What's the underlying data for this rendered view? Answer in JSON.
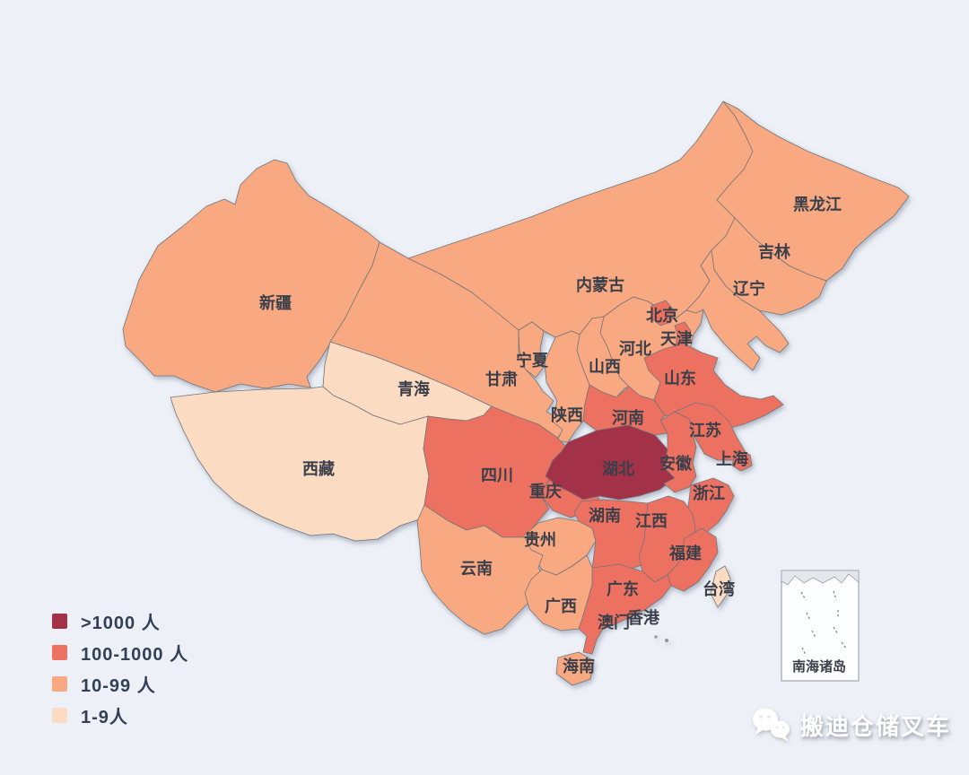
{
  "canvas": {
    "background": "#edf1f7"
  },
  "legend": {
    "items": [
      {
        "label": ">1000 人",
        "color": "#a33148",
        "level": 4
      },
      {
        "label": "100-1000 人",
        "color": "#ed7160",
        "level": 3
      },
      {
        "label": "10-99 人",
        "color": "#f8a982",
        "level": 2
      },
      {
        "label": "1-9人",
        "color": "#fbdcc3",
        "level": 1
      }
    ]
  },
  "map": {
    "border_color": "#73757a",
    "label_color": "#3a3f49",
    "island_dot_color": "#8f949c",
    "provinces": [
      {
        "id": "xinjiang",
        "name": "新疆",
        "level": 2
      },
      {
        "id": "xizang",
        "name": "西藏",
        "level": 1
      },
      {
        "id": "qinghai",
        "name": "青海",
        "level": 1
      },
      {
        "id": "gansu",
        "name": "甘肃",
        "level": 2
      },
      {
        "id": "neimenggu",
        "name": "内蒙古",
        "level": 2
      },
      {
        "id": "heilongjiang",
        "name": "黑龙江",
        "level": 2
      },
      {
        "id": "jilin",
        "name": "吉林",
        "level": 2
      },
      {
        "id": "liaoning",
        "name": "辽宁",
        "level": 2
      },
      {
        "id": "hebei",
        "name": "河北",
        "level": 2
      },
      {
        "id": "beijing",
        "name": "北京",
        "level": 3
      },
      {
        "id": "tianjin",
        "name": "天津",
        "level": 3
      },
      {
        "id": "shanxi",
        "name": "山西",
        "level": 2
      },
      {
        "id": "ningxia",
        "name": "宁夏",
        "level": 2
      },
      {
        "id": "shaanxi",
        "name": "陕西",
        "level": 2
      },
      {
        "id": "henan",
        "name": "河南",
        "level": 3
      },
      {
        "id": "shandong",
        "name": "山东",
        "level": 3
      },
      {
        "id": "sichuan",
        "name": "四川",
        "level": 3
      },
      {
        "id": "chongqing",
        "name": "重庆",
        "level": 3
      },
      {
        "id": "hubei",
        "name": "湖北",
        "level": 4
      },
      {
        "id": "anhui",
        "name": "安徽",
        "level": 3
      },
      {
        "id": "jiangsu",
        "name": "江苏",
        "level": 3
      },
      {
        "id": "shanghai",
        "name": "上海",
        "level": 3
      },
      {
        "id": "zhejiang",
        "name": "浙江",
        "level": 3
      },
      {
        "id": "guizhou",
        "name": "贵州",
        "level": 2
      },
      {
        "id": "yunnan",
        "name": "云南",
        "level": 2
      },
      {
        "id": "hunan",
        "name": "湖南",
        "level": 3
      },
      {
        "id": "jiangxi",
        "name": "江西",
        "level": 3
      },
      {
        "id": "fujian",
        "name": "福建",
        "level": 3
      },
      {
        "id": "guangdong",
        "name": "广东",
        "level": 3
      },
      {
        "id": "guangxi",
        "name": "广西",
        "level": 2
      },
      {
        "id": "hainan",
        "name": "海南",
        "level": 2
      },
      {
        "id": "taiwan",
        "name": "台湾",
        "level": 1
      },
      {
        "id": "macau",
        "name": "澳门",
        "level": null
      },
      {
        "id": "hongkong",
        "name": "香港",
        "level": null
      }
    ],
    "inset": {
      "label": "南海诸岛"
    }
  },
  "watermark": {
    "text": "搬迪仓储叉车",
    "icon": "wechat-icon"
  }
}
